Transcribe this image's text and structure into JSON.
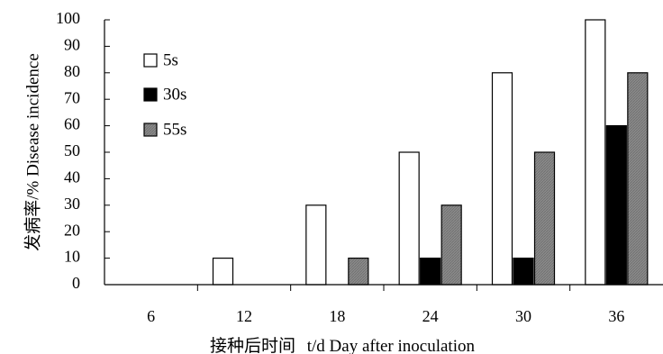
{
  "chart_data": {
    "type": "bar",
    "categories": [
      "6",
      "12",
      "18",
      "24",
      "30",
      "36"
    ],
    "series": [
      {
        "name": "5s",
        "values": [
          0,
          10,
          30,
          50,
          80,
          100
        ],
        "color": "#ffffff"
      },
      {
        "name": "30s",
        "values": [
          0,
          0,
          0,
          10,
          10,
          60
        ],
        "color": "#000000"
      },
      {
        "name": "55s",
        "values": [
          0,
          0,
          10,
          30,
          50,
          80
        ],
        "color": "#808080"
      }
    ],
    "ylim": [
      0,
      100
    ],
    "yticks": [
      "0",
      "10",
      "20",
      "30",
      "40",
      "50",
      "60",
      "70",
      "80",
      "90",
      "100"
    ],
    "ylabel": "发病率/% Disease incidence",
    "xlabel_cn": "接种后时间",
    "xlabel_en": "t/d Day after inoculation",
    "grid": false,
    "legend_position": "top-left"
  }
}
